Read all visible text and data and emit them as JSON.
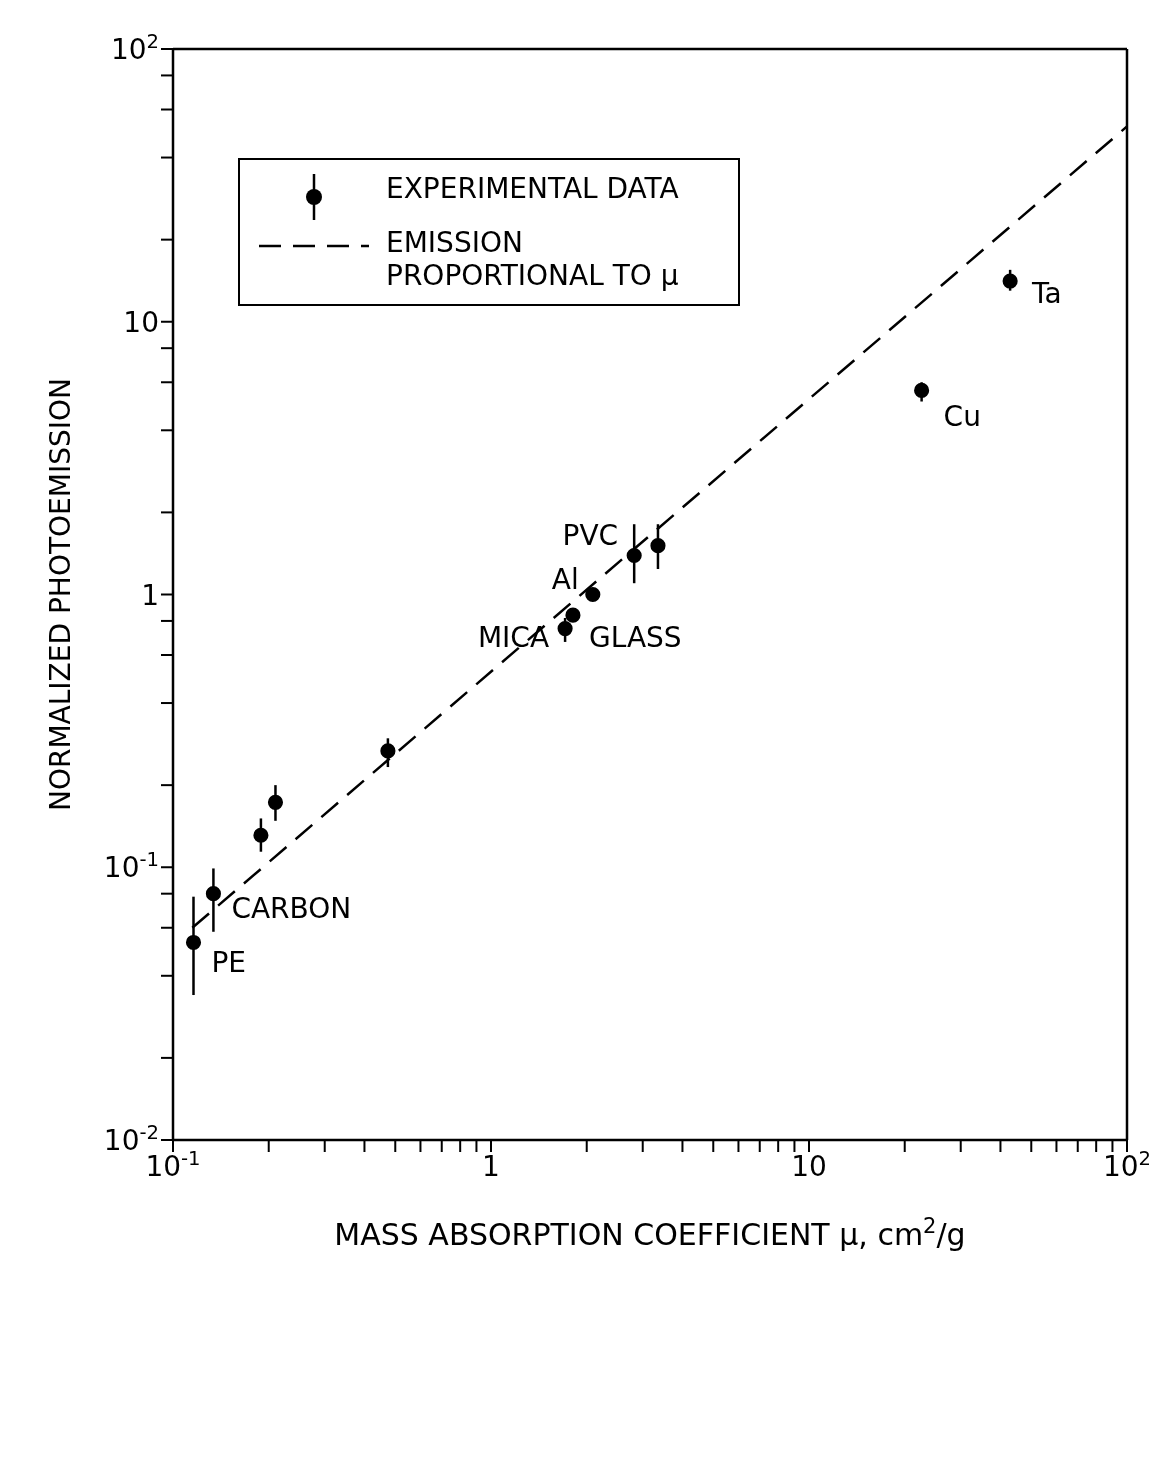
{
  "chart_data": {
    "type": "scatter",
    "xlabel": "MASS ABSORPTION COEFFICIENT μ, cm$^{2}$/g",
    "ylabel": "NORMALIZED PHOTOEMISSION",
    "log": "xy",
    "legend": "top left",
    "marker": "circle",
    "xlim": [
      0.1,
      100
    ],
    "ylim": [
      0.01,
      100
    ],
    "xticks": [
      {
        "value": 0.1,
        "label": "10$^{-1}$"
      },
      {
        "value": 0.2,
        "label": null
      },
      {
        "value": 0.3,
        "label": null
      },
      {
        "value": 0.4,
        "label": null
      },
      {
        "value": 0.5,
        "label": null
      },
      {
        "value": 0.6,
        "label": null
      },
      {
        "value": 0.7,
        "label": null
      },
      {
        "value": 0.8,
        "label": null
      },
      {
        "value": 0.9,
        "label": null
      },
      1,
      {
        "value": 2,
        "label": null
      },
      {
        "value": 3,
        "label": null
      },
      {
        "value": 4,
        "label": null
      },
      {
        "value": 5,
        "label": null
      },
      {
        "value": 6,
        "label": null
      },
      {
        "value": 7,
        "label": null
      },
      {
        "value": 8,
        "label": null
      },
      {
        "value": 9,
        "label": null
      },
      10,
      {
        "value": 20,
        "label": null
      },
      {
        "value": 30,
        "label": null
      },
      {
        "value": 40,
        "label": null
      },
      {
        "value": 50,
        "label": null
      },
      {
        "value": 60,
        "label": null
      },
      {
        "value": 70,
        "label": null
      },
      {
        "value": 80,
        "label": null
      },
      {
        "value": 90,
        "label": null
      },
      {
        "value": 100,
        "label": "10$^{2}$"
      }
    ],
    "yticks": [
      {
        "value": 0.01,
        "label": "10$^{-2}$"
      },
      {
        "value": 0.02,
        "label": null
      },
      {
        "value": 0.04,
        "label": null
      },
      {
        "value": 0.06,
        "label": null
      },
      {
        "value": 0.08,
        "label": null
      },
      {
        "value": 0.1,
        "label": "10$^{-1}$"
      },
      {
        "value": 0.2,
        "label": null
      },
      {
        "value": 0.4,
        "label": null
      },
      {
        "value": 0.6,
        "label": null
      },
      {
        "value": 0.8,
        "label": null
      },
      1,
      {
        "value": 2,
        "label": null
      },
      {
        "value": 4,
        "label": null
      },
      {
        "value": 6,
        "label": null
      },
      {
        "value": 8,
        "label": null
      },
      10,
      {
        "value": 20,
        "label": null
      },
      {
        "value": 40,
        "label": null
      },
      {
        "value": 60,
        "label": null
      },
      {
        "value": 80,
        "label": null
      },
      {
        "value": 100,
        "label": "10$^{2}$"
      }
    ],
    "series": [
      {
        "name": "EXPERIMENTAL DATA",
        "color": "#000000",
        "x": [
          0.116,
          0.134,
          0.189,
          0.21,
          0.474,
          1.71,
          1.81,
          2.09,
          2.82,
          3.35,
          22.6,
          42.9
        ],
        "values": [
          0.053,
          0.08,
          0.131,
          0.173,
          0.267,
          0.75,
          0.84,
          1.0,
          1.39,
          1.51,
          5.6,
          14.1
        ],
        "errors": [
          [
            0.034,
            0.078
          ],
          [
            0.058,
            0.099
          ],
          [
            0.114,
            0.151
          ],
          [
            0.148,
            0.2
          ],
          [
            0.233,
            0.297
          ],
          [
            0.67,
            0.82
          ],
          null,
          null,
          [
            1.1,
            1.81
          ],
          [
            1.24,
            1.81
          ],
          [
            5.1,
            6.0
          ],
          [
            13.0,
            15.5
          ]
        ]
      },
      {
        "type": "line",
        "name": "EMISSION PROPORTIONAL TO μ",
        "color": "#000000",
        "line_style": "dashed",
        "marker": "none",
        "x": [
          0.115,
          100
        ],
        "values": [
          0.06,
          52
        ]
      }
    ],
    "annotations": [
      {
        "text": "PE",
        "x": 0.116,
        "y": 0.053
      },
      {
        "text": "CARBON",
        "x": 0.134,
        "y": 0.08
      },
      {
        "text": "MICA",
        "x": 1.71,
        "y": 0.75
      },
      {
        "text": "GLASS",
        "x": 1.81,
        "y": 0.84
      },
      {
        "text": "Al",
        "x": 2.09,
        "y": 1.0
      },
      {
        "text": "PVC",
        "x": 2.82,
        "y": 1.39
      },
      {
        "text": "Cu",
        "x": 22.6,
        "y": 5.6
      },
      {
        "text": "Ta",
        "x": 42.9,
        "y": 14.1
      }
    ]
  }
}
